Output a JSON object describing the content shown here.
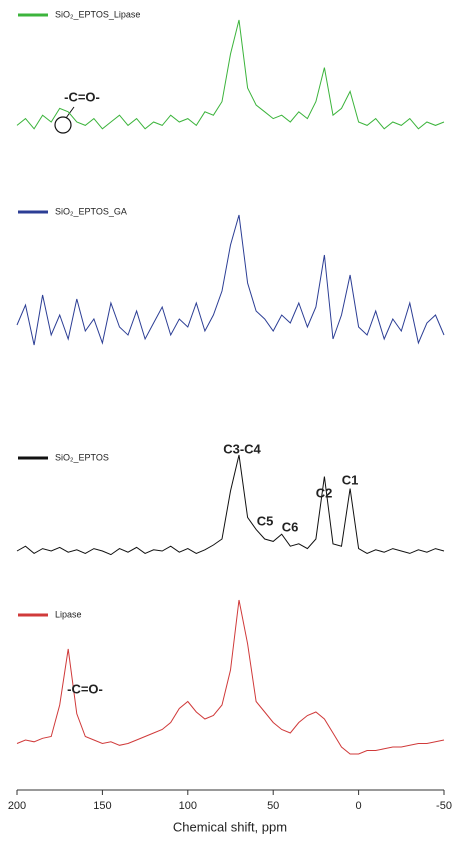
{
  "chart_data": {
    "type": "line",
    "x_label": "Chemical shift, ppm",
    "xlim": [
      200,
      -50
    ],
    "xticks": [
      200,
      150,
      100,
      50,
      0,
      -50
    ],
    "ylim": [
      0,
      100
    ],
    "x": [
      200,
      195,
      190,
      185,
      180,
      175,
      170,
      165,
      160,
      155,
      150,
      145,
      140,
      135,
      130,
      125,
      120,
      115,
      110,
      105,
      100,
      95,
      90,
      85,
      80,
      75,
      70,
      65,
      60,
      55,
      50,
      45,
      40,
      35,
      30,
      25,
      20,
      15,
      10,
      5,
      0,
      -5,
      -10,
      -15,
      -20,
      -25,
      -30,
      -35,
      -40,
      -45,
      -50
    ],
    "series": [
      {
        "name": "SiO₂_EPTOS_Lipase",
        "color": "#3cb43c",
        "values": [
          38,
          42,
          36,
          44,
          40,
          48,
          46,
          40,
          38,
          42,
          36,
          40,
          44,
          38,
          42,
          36,
          40,
          38,
          44,
          40,
          42,
          38,
          46,
          44,
          52,
          80,
          100,
          60,
          50,
          46,
          42,
          44,
          40,
          46,
          42,
          52,
          72,
          44,
          48,
          58,
          40,
          38,
          42,
          36,
          40,
          38,
          42,
          36,
          40,
          38,
          40
        ]
      },
      {
        "name": "SiO₂_EPTOS_GA",
        "color": "#2c3e95",
        "values": [
          45,
          55,
          35,
          60,
          40,
          50,
          38,
          58,
          42,
          48,
          36,
          56,
          44,
          40,
          52,
          38,
          46,
          54,
          40,
          48,
          44,
          56,
          42,
          50,
          62,
          85,
          100,
          66,
          52,
          48,
          42,
          50,
          46,
          56,
          44,
          54,
          80,
          38,
          50,
          70,
          44,
          40,
          52,
          38,
          48,
          42,
          56,
          36,
          46,
          50,
          40
        ]
      },
      {
        "name": "SiO₂_EPTOS",
        "color": "#111111",
        "values": [
          20,
          24,
          18,
          22,
          20,
          23,
          19,
          21,
          18,
          22,
          20,
          17,
          22,
          19,
          23,
          18,
          21,
          20,
          24,
          19,
          22,
          18,
          21,
          25,
          30,
          70,
          100,
          48,
          38,
          30,
          28,
          34,
          24,
          26,
          22,
          30,
          82,
          26,
          24,
          72,
          22,
          18,
          21,
          19,
          22,
          20,
          18,
          21,
          19,
          22,
          20
        ]
      },
      {
        "name": "Lipase",
        "color": "#d03a3a",
        "values": [
          18,
          20,
          19,
          21,
          22,
          40,
          72,
          35,
          22,
          20,
          18,
          19,
          17,
          18,
          20,
          22,
          24,
          26,
          30,
          38,
          42,
          36,
          32,
          34,
          40,
          60,
          100,
          75,
          42,
          36,
          30,
          26,
          24,
          30,
          34,
          36,
          32,
          24,
          16,
          12,
          12,
          14,
          14,
          15,
          16,
          16,
          17,
          18,
          18,
          19,
          20
        ]
      }
    ],
    "annotations": [
      "-C=O-",
      "C3-C4",
      "C5",
      "C6",
      "C2",
      "C1",
      "-C=O-"
    ]
  }
}
